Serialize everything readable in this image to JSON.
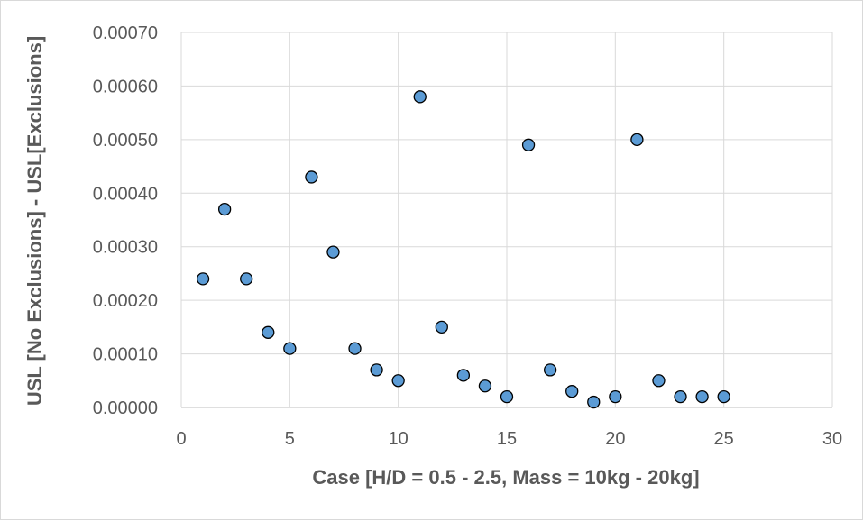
{
  "chart_data": {
    "type": "scatter",
    "title": "",
    "xlabel": "Case [H/D = 0.5 - 2.5, Mass = 10kg - 20kg]",
    "ylabel": "USL [No Exclusions] - USL[Exclusions]",
    "xlim": [
      0,
      30
    ],
    "ylim": [
      0,
      0.0007
    ],
    "x_ticks": [
      "0",
      "5",
      "10",
      "15",
      "20",
      "25",
      "30"
    ],
    "y_ticks": [
      "0.00000",
      "0.00010",
      "0.00020",
      "0.00030",
      "0.00040",
      "0.00050",
      "0.00060",
      "0.00070"
    ],
    "grid": "horizontal",
    "legend": "none",
    "marker_color": "#5b9bd5",
    "marker_edge_color": "#000000",
    "series": [
      {
        "x": [
          1,
          2,
          3,
          4,
          5,
          6,
          7,
          8,
          9,
          10,
          11,
          12,
          13,
          14,
          15,
          16,
          17,
          18,
          19,
          20,
          21,
          22,
          23,
          24,
          25
        ],
        "y": [
          0.00024,
          0.00037,
          0.00024,
          0.00014,
          0.00011,
          0.00043,
          0.00029,
          0.00011,
          7e-05,
          5e-05,
          0.00058,
          0.00015,
          6e-05,
          4e-05,
          2e-05,
          0.00049,
          7e-05,
          3e-05,
          1e-05,
          2e-05,
          0.0005,
          5e-05,
          2e-05,
          2e-05,
          2e-05
        ]
      }
    ]
  }
}
